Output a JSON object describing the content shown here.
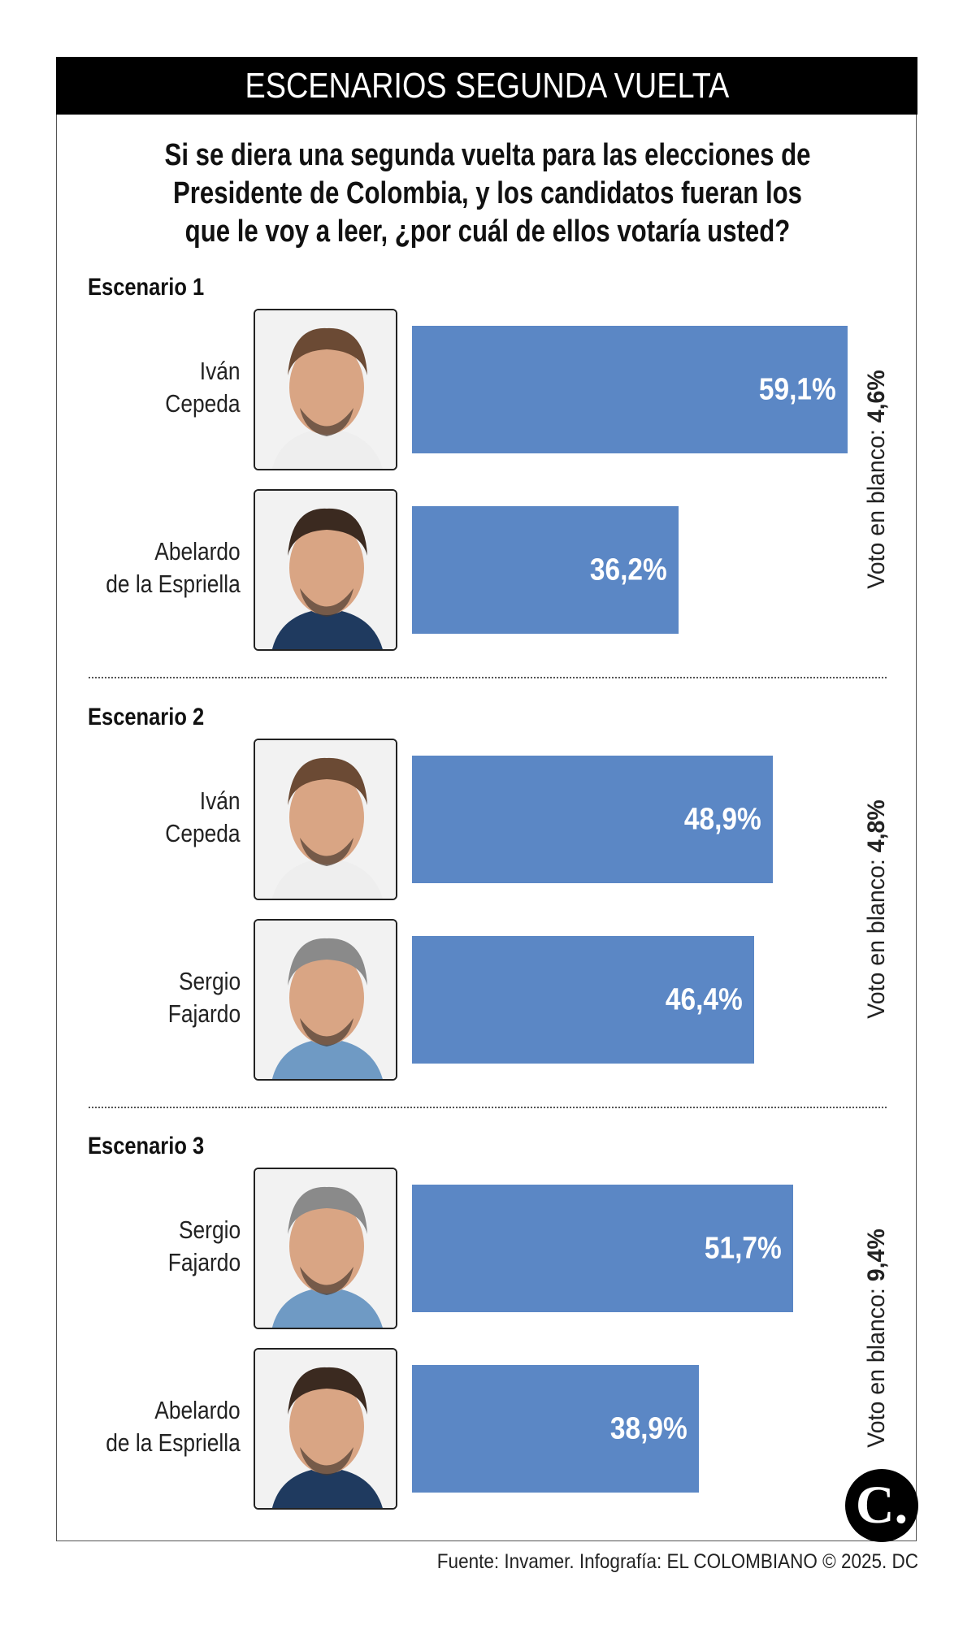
{
  "header": {
    "title": "ESCENARIOS SEGUNDA VUELTA"
  },
  "question": [
    "Si se diera una segunda vuelta para las elecciones de",
    "Presidente de Colombia, y los candidatos fueran los",
    "que le voy a leer, ¿por cuál de ellos votaría usted?"
  ],
  "colors": {
    "bar": "#5b87c5",
    "header_bg": "#000000"
  },
  "chart_data": {
    "type": "bar",
    "orientation": "horizontal",
    "unit": "%",
    "scenarios": [
      {
        "label": "Escenario 1",
        "blank_label": "Voto en blanco: ",
        "blank_value": "4,6%",
        "blank": 4.6,
        "candidates": [
          {
            "name": [
              "Iván",
              "Cepeda"
            ],
            "value": 59.1,
            "label": "59,1%"
          },
          {
            "name": [
              "Abelardo",
              "de la Espriella"
            ],
            "value": 36.2,
            "label": "36,2%"
          }
        ]
      },
      {
        "label": "Escenario 2",
        "blank_label": "Voto en blanco: ",
        "blank_value": "4,8%",
        "blank": 4.8,
        "candidates": [
          {
            "name": [
              "Iván",
              "Cepeda"
            ],
            "value": 48.9,
            "label": "48,9%"
          },
          {
            "name": [
              "Sergio",
              "Fajardo"
            ],
            "value": 46.4,
            "label": "46,4%"
          }
        ]
      },
      {
        "label": "Escenario 3",
        "blank_label": "Voto en blanco: ",
        "blank_value": "9,4%",
        "blank": 9.4,
        "candidates": [
          {
            "name": [
              "Sergio",
              "Fajardo"
            ],
            "value": 51.7,
            "label": "51,7%"
          },
          {
            "name": [
              "Abelardo",
              "de la Espriella"
            ],
            "value": 38.9,
            "label": "38,9%"
          }
        ]
      }
    ]
  },
  "logo": {
    "text": "C."
  },
  "footer": "Fuente: Invamer. Infografía: EL COLOMBIANO © 2025. DC"
}
